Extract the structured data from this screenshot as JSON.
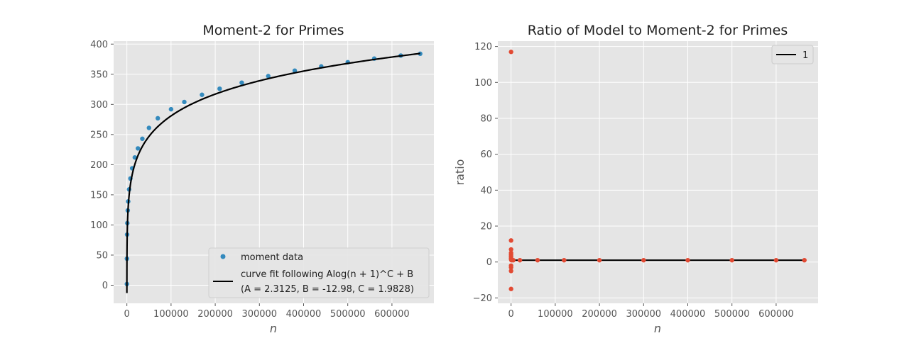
{
  "chart_data": [
    {
      "type": "scatter",
      "title": "Moment-2 for Primes",
      "xlabel": "n",
      "ylabel": "",
      "xlim": [
        -30000,
        695000
      ],
      "ylim": [
        -30,
        405
      ],
      "xticks": [
        0,
        100000,
        200000,
        300000,
        400000,
        500000,
        600000
      ],
      "yticks": [
        0,
        50,
        100,
        150,
        200,
        250,
        300,
        350,
        400
      ],
      "grid": true,
      "legend_position": "lower-right",
      "series": [
        {
          "name": "moment data",
          "kind": "scatter",
          "color": "#348abd",
          "x": [
            1,
            100,
            500,
            1000,
            2000,
            3000,
            5000,
            8000,
            12000,
            18000,
            25000,
            35000,
            50000,
            70000,
            100000,
            130000,
            170000,
            210000,
            260000,
            320000,
            380000,
            440000,
            500000,
            560000,
            620000,
            664000
          ],
          "y": [
            2,
            44,
            84,
            103,
            124,
            139,
            159,
            177,
            194,
            212,
            227,
            243,
            261,
            277,
            292,
            304,
            316,
            326,
            336,
            347,
            356,
            363,
            370,
            376,
            381,
            384
          ]
        },
        {
          "name": "curve fit following Alog(n + 1)^C + B",
          "name_line2": "(A = 2.3125, B = -12.98, C = 1.9828)",
          "kind": "line",
          "color": "#000000",
          "params": {
            "A": 2.3125,
            "B": -12.98,
            "C": 1.9828
          },
          "x_range": [
            0,
            664000
          ]
        }
      ]
    },
    {
      "type": "scatter",
      "title": "Ratio of Model to Moment-2 for Primes",
      "xlabel": "n",
      "ylabel": "ratio",
      "xlim": [
        -30000,
        695000
      ],
      "ylim": [
        -23,
        123
      ],
      "xticks": [
        0,
        100000,
        200000,
        300000,
        400000,
        500000,
        600000
      ],
      "yticks": [
        -20,
        0,
        20,
        40,
        60,
        80,
        100,
        120
      ],
      "grid": true,
      "legend_position": "top-right",
      "series": [
        {
          "name": "",
          "kind": "scatter",
          "color": "#e24a33",
          "x": [
            1,
            2,
            3,
            4,
            5,
            6,
            7,
            8,
            10,
            20,
            50,
            100,
            500,
            1000,
            5000,
            20000,
            60000,
            120000,
            200000,
            300000,
            400000,
            500000,
            600000,
            664000
          ],
          "y": [
            117,
            12,
            -15,
            7,
            5,
            -5,
            -3,
            4,
            3,
            -2,
            2,
            1.5,
            1.1,
            1,
            1,
            1,
            1,
            1,
            1,
            1,
            1,
            1,
            1,
            1
          ]
        },
        {
          "name": "1",
          "kind": "line",
          "color": "#000000",
          "x": [
            0,
            664000
          ],
          "y": [
            1,
            1
          ]
        }
      ]
    }
  ]
}
